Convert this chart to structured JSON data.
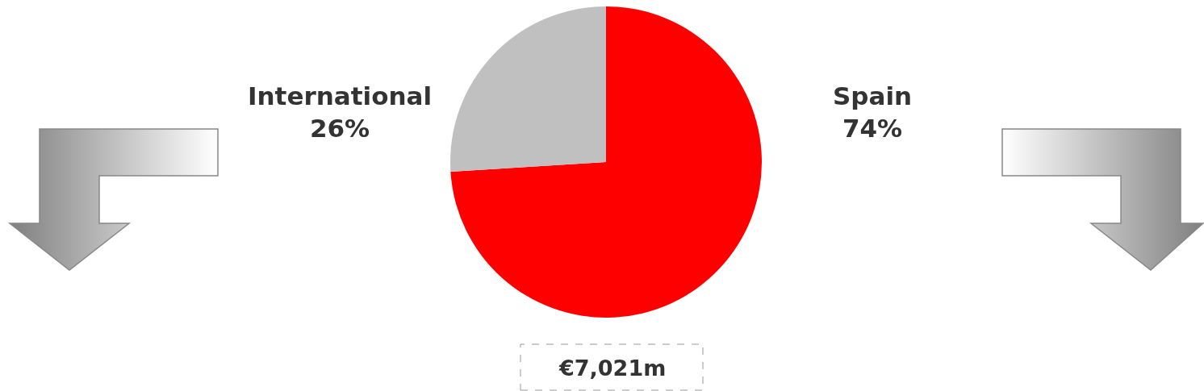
{
  "chart_data": {
    "type": "pie",
    "categories": [
      "Spain",
      "International"
    ],
    "values": [
      74,
      26
    ],
    "colors": [
      "#ff0000",
      "#c0c0c0"
    ],
    "value_labels": [
      "74%",
      "26%"
    ],
    "annotations": [
      "€7,021m"
    ]
  }
}
